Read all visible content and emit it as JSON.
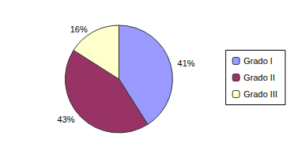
{
  "chart_data": {
    "type": "pie",
    "categories": [
      "Grado I",
      "Grado II",
      "Grado III"
    ],
    "values": [
      41,
      43,
      16
    ],
    "value_labels": [
      "41%",
      "43%",
      "16%"
    ],
    "colors": [
      "#9999ff",
      "#993366",
      "#ffffcc"
    ],
    "data_labels": true,
    "legend": "right"
  }
}
